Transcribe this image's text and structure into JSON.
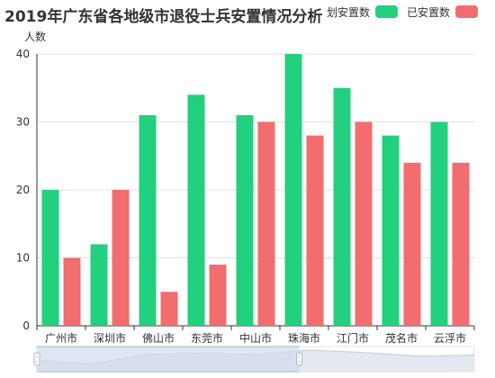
{
  "chart_data": {
    "type": "bar",
    "title": "2019年广东省各地级市退役士兵安置情况分析",
    "ylabel": "人数",
    "xlabel": "",
    "categories": [
      "广州市",
      "深圳市",
      "佛山市",
      "东莞市",
      "中山市",
      "珠海市",
      "江门市",
      "茂名市",
      "云浮市"
    ],
    "series": [
      {
        "name": "计划安置数",
        "legend_text": "划安置数",
        "color": "#22d07e",
        "values": [
          20,
          12,
          31,
          34,
          31,
          40,
          35,
          28,
          30
        ]
      },
      {
        "name": "已安置数",
        "legend_text": "已安置数",
        "color": "#f26d6d",
        "values": [
          10,
          20,
          5,
          9,
          30,
          28,
          30,
          24,
          24
        ]
      }
    ],
    "ylim": [
      0,
      40
    ],
    "yticks": [
      0,
      10,
      20,
      30,
      40
    ],
    "grid": true,
    "legend_position": "top-right",
    "datazoom": {
      "start_percent": 0,
      "end_percent": 60
    }
  },
  "colors": {
    "axis": "#333333",
    "grid": "#e0e0e0",
    "zoom_fill": "#d2dbee",
    "zoom_border": "#a7b7cc"
  }
}
